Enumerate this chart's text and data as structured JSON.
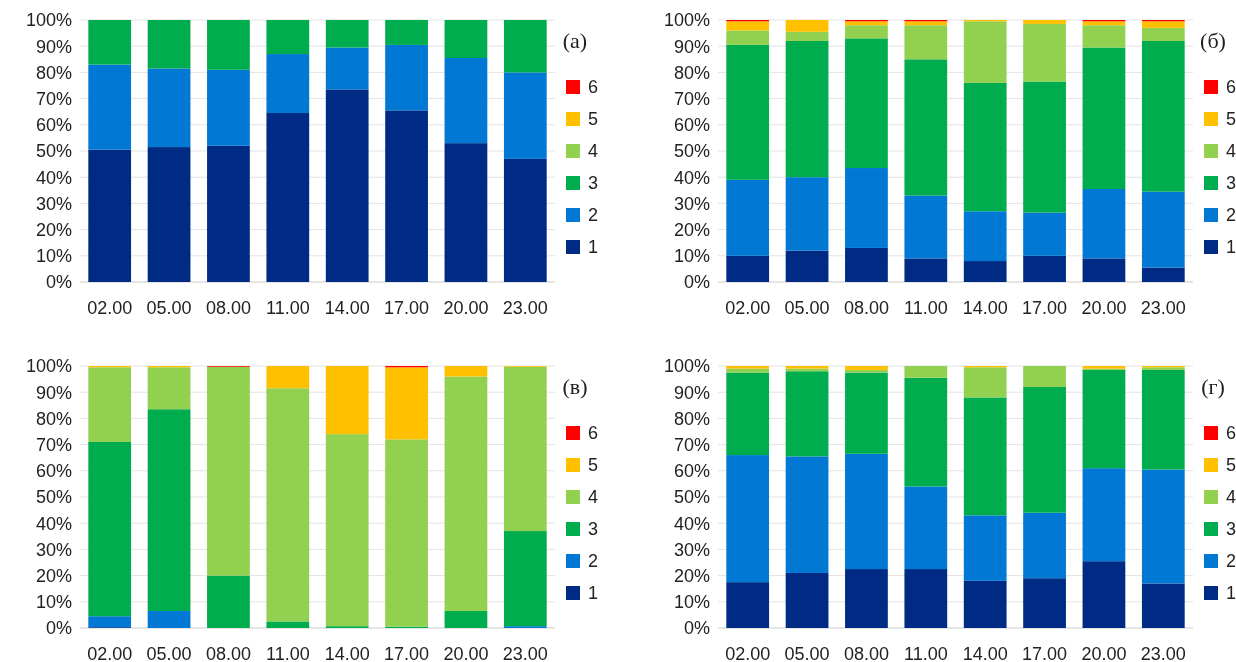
{
  "chart_data": [
    {
      "type": "bar",
      "title": "(а)",
      "stacked": true,
      "grid": "y",
      "legend": "right",
      "categories": [
        "02.00",
        "05.00",
        "08.00",
        "11.00",
        "14.00",
        "17.00",
        "20.00",
        "23.00"
      ],
      "ylim": [
        0,
        100
      ],
      "yticks": [
        {
          "value": 0,
          "label": "0%"
        },
        {
          "value": 10,
          "label": "10%"
        },
        {
          "value": 20,
          "label": "20%"
        },
        {
          "value": 30,
          "label": "30%"
        },
        {
          "value": 40,
          "label": "40%"
        },
        {
          "value": 50,
          "label": "50%"
        },
        {
          "value": 60,
          "label": "60%"
        },
        {
          "value": 70,
          "label": "70%"
        },
        {
          "value": 80,
          "label": "80%"
        },
        {
          "value": 90,
          "label": "90%"
        },
        {
          "value": 100,
          "label": "100%"
        }
      ],
      "series": [
        {
          "name": "1",
          "color": "#002b84",
          "values": [
            50.5,
            51.5,
            52,
            64.5,
            73.5,
            65.5,
            53,
            47
          ]
        },
        {
          "name": "2",
          "color": "#0078d4",
          "values": [
            32.5,
            30,
            29,
            22.5,
            16,
            25,
            32.5,
            33
          ]
        },
        {
          "name": "3",
          "color": "#00ad4e",
          "values": [
            17,
            18.5,
            19,
            13,
            10.5,
            9.5,
            14.5,
            20
          ]
        },
        {
          "name": "4",
          "color": "#92d050",
          "values": [
            0,
            0,
            0,
            0,
            0,
            0,
            0,
            0
          ]
        },
        {
          "name": "5",
          "color": "#ffc000",
          "values": [
            0,
            0,
            0,
            0,
            0,
            0,
            0,
            0
          ]
        },
        {
          "name": "6",
          "color": "#ff0000",
          "values": [
            0,
            0,
            0,
            0,
            0,
            0,
            0,
            0
          ]
        }
      ]
    },
    {
      "type": "bar",
      "title": "(б)",
      "stacked": true,
      "grid": "y",
      "legend": "right",
      "categories": [
        "02.00",
        "05.00",
        "08.00",
        "11.00",
        "14.00",
        "17.00",
        "20.00",
        "23.00"
      ],
      "ylim": [
        0,
        100
      ],
      "yticks": [
        {
          "value": 0,
          "label": "0%"
        },
        {
          "value": 10,
          "label": "10%"
        },
        {
          "value": 20,
          "label": "20%"
        },
        {
          "value": 30,
          "label": "30%"
        },
        {
          "value": 40,
          "label": "40%"
        },
        {
          "value": 50,
          "label": "50%"
        },
        {
          "value": 60,
          "label": "60%"
        },
        {
          "value": 70,
          "label": "70%"
        },
        {
          "value": 80,
          "label": "80%"
        },
        {
          "value": 90,
          "label": "90%"
        },
        {
          "value": 100,
          "label": "100%"
        }
      ],
      "series": [
        {
          "name": "1",
          "color": "#002b84",
          "values": [
            10,
            12,
            13,
            9,
            8,
            10,
            9,
            5.5
          ]
        },
        {
          "name": "2",
          "color": "#0078d4",
          "values": [
            29,
            28,
            30.5,
            24,
            19,
            16.5,
            26.5,
            29
          ]
        },
        {
          "name": "3",
          "color": "#00ad4e",
          "values": [
            51.5,
            52,
            49.5,
            52,
            49,
            50,
            54,
            57.5
          ]
        },
        {
          "name": "4",
          "color": "#92d050",
          "values": [
            5.5,
            3.5,
            5,
            13,
            23.5,
            22,
            8.5,
            5
          ]
        },
        {
          "name": "5",
          "color": "#ffc000",
          "values": [
            3.5,
            4.5,
            1.5,
            1.5,
            0.5,
            1.5,
            1.5,
            2.5
          ]
        },
        {
          "name": "6",
          "color": "#ff0000",
          "values": [
            0.5,
            0,
            0.5,
            0.5,
            0,
            0,
            0.5,
            0.5
          ]
        }
      ]
    },
    {
      "type": "bar",
      "title": "(в)",
      "stacked": true,
      "grid": "y",
      "legend": "right",
      "categories": [
        "02.00",
        "05.00",
        "08.00",
        "11.00",
        "14.00",
        "17.00",
        "20.00",
        "23.00"
      ],
      "ylim": [
        0,
        100
      ],
      "yticks": [
        {
          "value": 0,
          "label": "0%"
        },
        {
          "value": 10,
          "label": "10%"
        },
        {
          "value": 20,
          "label": "20%"
        },
        {
          "value": 30,
          "label": "30%"
        },
        {
          "value": 40,
          "label": "40%"
        },
        {
          "value": 50,
          "label": "50%"
        },
        {
          "value": 60,
          "label": "60%"
        },
        {
          "value": 70,
          "label": "70%"
        },
        {
          "value": 80,
          "label": "80%"
        },
        {
          "value": 90,
          "label": "90%"
        },
        {
          "value": 100,
          "label": "100%"
        }
      ],
      "series": [
        {
          "name": "1",
          "color": "#002b84",
          "values": [
            0.3,
            0,
            0,
            0,
            0,
            0,
            0,
            0
          ]
        },
        {
          "name": "2",
          "color": "#0078d4",
          "values": [
            4.2,
            6.5,
            0,
            0,
            0,
            0,
            0,
            0.7
          ]
        },
        {
          "name": "3",
          "color": "#00ad4e",
          "values": [
            66.5,
            77,
            20,
            2.5,
            0.7,
            0.5,
            6.5,
            36.3
          ]
        },
        {
          "name": "4",
          "color": "#92d050",
          "values": [
            28.5,
            16,
            79.7,
            89,
            73.3,
            71.5,
            89.5,
            62.7
          ]
        },
        {
          "name": "5",
          "color": "#ffc000",
          "values": [
            0.5,
            0.5,
            0,
            8.5,
            26,
            27.5,
            4,
            0.3
          ]
        },
        {
          "name": "6",
          "color": "#ff0000",
          "values": [
            0,
            0,
            0.3,
            0,
            0,
            0.5,
            0,
            0
          ]
        }
      ]
    },
    {
      "type": "bar",
      "title": "(г)",
      "stacked": true,
      "grid": "y",
      "legend": "right",
      "categories": [
        "02.00",
        "05.00",
        "08.00",
        "11.00",
        "14.00",
        "17.00",
        "20.00",
        "23.00"
      ],
      "ylim": [
        0,
        100
      ],
      "yticks": [
        {
          "value": 0,
          "label": "0%"
        },
        {
          "value": 10,
          "label": "10%"
        },
        {
          "value": 20,
          "label": "20%"
        },
        {
          "value": 30,
          "label": "30%"
        },
        {
          "value": 40,
          "label": "40%"
        },
        {
          "value": 50,
          "label": "50%"
        },
        {
          "value": 60,
          "label": "60%"
        },
        {
          "value": 70,
          "label": "70%"
        },
        {
          "value": 80,
          "label": "80%"
        },
        {
          "value": 90,
          "label": "90%"
        },
        {
          "value": 100,
          "label": "100%"
        }
      ],
      "series": [
        {
          "name": "1",
          "color": "#002b84",
          "values": [
            17.5,
            21,
            22.5,
            22.5,
            18,
            19,
            25.5,
            17
          ]
        },
        {
          "name": "2",
          "color": "#0078d4",
          "values": [
            48.5,
            44.5,
            44,
            31.5,
            25,
            25,
            35.5,
            43.5
          ]
        },
        {
          "name": "3",
          "color": "#00ad4e",
          "values": [
            31.5,
            32.5,
            31,
            41.5,
            45,
            48,
            37.5,
            38
          ]
        },
        {
          "name": "4",
          "color": "#92d050",
          "values": [
            1.5,
            1,
            1,
            4.5,
            11.5,
            8,
            0.5,
            1
          ]
        },
        {
          "name": "5",
          "color": "#ffc000",
          "values": [
            1,
            1,
            1.5,
            0,
            0.5,
            0,
            1,
            0.5
          ]
        },
        {
          "name": "6",
          "color": "#ff0000",
          "values": [
            0,
            0,
            0,
            0,
            0,
            0,
            0,
            0
          ]
        }
      ]
    }
  ]
}
